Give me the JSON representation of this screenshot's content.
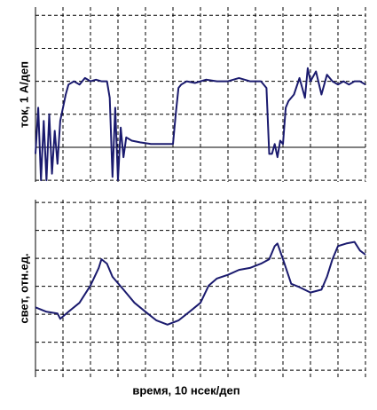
{
  "chart_data": [
    {
      "type": "line",
      "ylabel": "ток, 1 А/деп",
      "x": [
        0,
        0.1,
        0.2,
        0.3,
        0.4,
        0.5,
        0.6,
        0.7,
        0.8,
        0.9,
        1.0,
        1.1,
        1.2,
        1.4,
        1.6,
        1.8,
        2.0,
        2.2,
        2.4,
        2.6,
        2.7,
        2.8,
        2.9,
        3.0,
        3.1,
        3.2,
        3.3,
        3.5,
        3.8,
        4.2,
        4.6,
        5.0,
        5.1,
        5.2,
        5.3,
        5.5,
        5.8,
        6.2,
        6.6,
        7.0,
        7.4,
        7.8,
        8.2,
        8.4,
        8.5,
        8.6,
        8.7,
        8.8,
        8.9,
        9.0,
        9.1,
        9.2,
        9.4,
        9.6,
        9.8,
        9.9,
        10.0,
        10.2,
        10.4,
        10.6,
        10.8,
        11.0,
        11.2,
        11.4,
        11.6,
        11.8,
        12.0
      ],
      "series": [
        {
          "color": "#1a1a6e",
          "values": [
            -0.2,
            1.2,
            -1,
            0.8,
            -1,
            1.0,
            -0.8,
            0.5,
            -0.5,
            0.8,
            1.2,
            1.6,
            1.9,
            2.0,
            1.9,
            2.1,
            2.0,
            2.05,
            2.0,
            2.0,
            1.5,
            -0.9,
            1.2,
            -1.0,
            0.6,
            -0.3,
            0.3,
            0.2,
            0.15,
            0.1,
            0.1,
            0.1,
            1.0,
            1.8,
            1.9,
            2.0,
            1.95,
            2.05,
            2.0,
            2.0,
            2.1,
            2.0,
            2.0,
            1.8,
            -0.2,
            -0.2,
            0.1,
            -0.3,
            0.2,
            0.1,
            1.2,
            1.4,
            1.6,
            2.1,
            1.5,
            2.4,
            2.0,
            2.3,
            1.6,
            2.2,
            2.0,
            1.9,
            2.0,
            1.9,
            2.0,
            2.0,
            1.9
          ]
        }
      ],
      "xlim": [
        0,
        12
      ],
      "xticks": [
        1,
        2,
        3,
        4,
        5,
        6,
        7,
        8,
        9,
        10,
        11,
        12
      ],
      "ylim": [
        -1.05,
        4.25
      ],
      "yticks": [
        -1,
        0,
        1,
        2,
        3,
        4
      ],
      "grid": true
    },
    {
      "type": "line",
      "ylabel": "свет, отн.ед.",
      "xlabel": "время, 10 нсек/деп",
      "x": [
        0,
        0.4,
        0.8,
        0.9,
        1.2,
        1.6,
        2.0,
        2.3,
        2.4,
        2.6,
        2.8,
        3.2,
        3.6,
        4.0,
        4.4,
        4.8,
        5.2,
        5.6,
        6.0,
        6.3,
        6.6,
        7.0,
        7.4,
        7.8,
        8.2,
        8.5,
        8.7,
        8.8,
        9.0,
        9.3,
        9.6,
        10.0,
        10.4,
        10.6,
        10.8,
        11.0,
        11.3,
        11.6,
        11.8,
        12.0
      ],
      "series": [
        {
          "color": "#1a1a6e",
          "values": [
            2.25,
            2.09,
            2.03,
            1.84,
            2.09,
            2.41,
            3.03,
            3.66,
            3.97,
            3.81,
            3.34,
            2.88,
            2.41,
            2.09,
            1.78,
            1.63,
            1.78,
            2.09,
            2.41,
            3.03,
            3.28,
            3.41,
            3.59,
            3.66,
            3.81,
            3.97,
            4.44,
            4.53,
            3.97,
            3.09,
            2.97,
            2.78,
            2.88,
            3.34,
            3.97,
            4.44,
            4.53,
            4.59,
            4.28,
            4.13
          ]
        }
      ],
      "xlim": [
        0,
        12
      ],
      "xticks": [
        1,
        2,
        3,
        4,
        5,
        6,
        7,
        8,
        9,
        10,
        11,
        12
      ],
      "ylim": [
        -0.25,
        6.1
      ],
      "yticks": [
        0,
        1,
        2,
        3,
        4,
        5,
        6
      ],
      "grid": true
    }
  ]
}
